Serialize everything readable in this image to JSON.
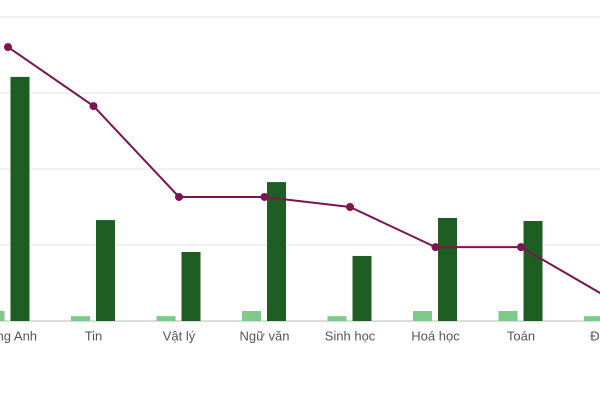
{
  "chart_data": {
    "type": "bar-line",
    "categories": [
      "Tiếng Anh",
      "Tin",
      "Vật lý",
      "Ngữ văn",
      "Sinh học",
      "Hoá học",
      "Toán",
      "Địa lý"
    ],
    "series": [
      {
        "type": "bar",
        "color": "#7fc98a",
        "values": [
          3.3,
          1.6,
          1.6,
          3.3,
          1.6,
          3.3,
          3.3,
          1.6
        ]
      },
      {
        "type": "bar",
        "color": "#1e5e22",
        "values": [
          80.3,
          33.2,
          22.7,
          45.7,
          21.4,
          33.9,
          32.9,
          null
        ]
      },
      {
        "type": "line",
        "color": "#7b1450",
        "values": [
          90.1,
          70.7,
          40.8,
          40.8,
          37.5,
          24.3,
          24.3,
          8
        ]
      }
    ],
    "ylim": [
      0,
      100
    ],
    "yticks": [
      0,
      25,
      50,
      75,
      100
    ],
    "grid": true
  }
}
